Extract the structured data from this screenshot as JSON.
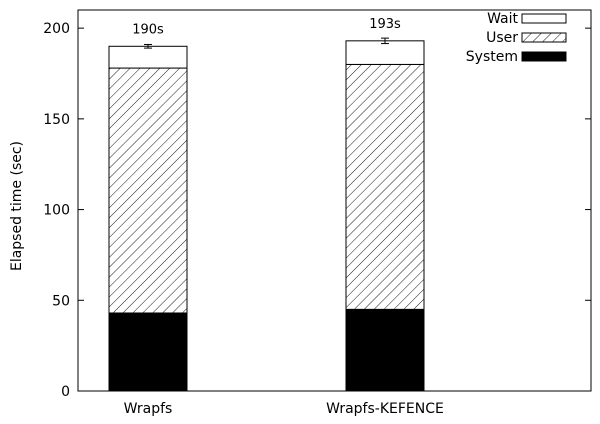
{
  "chart_data": {
    "type": "bar",
    "stacked": true,
    "title": "",
    "xlabel": "",
    "ylabel": "Elapsed time (sec)",
    "ylim": [
      0,
      210
    ],
    "yticks": [
      0,
      50,
      100,
      150,
      200
    ],
    "categories": [
      "Wrapfs",
      "Wrapfs-KEFENCE"
    ],
    "series": [
      {
        "name": "System",
        "fill": "solid",
        "color": "#000000",
        "values": [
          43,
          45
        ]
      },
      {
        "name": "User",
        "fill": "diagonal-hatch",
        "color": "#000000",
        "values": [
          135,
          135
        ]
      },
      {
        "name": "Wait",
        "fill": "empty",
        "color": "#ffffff",
        "values": [
          12,
          13
        ]
      }
    ],
    "totals": [
      190,
      193
    ],
    "total_labels": [
      "190s",
      "193s"
    ],
    "error_bars": [
      1,
      1.5
    ],
    "legend_position": "top-right",
    "legend_order": [
      "Wait",
      "User",
      "System"
    ],
    "grid": false
  }
}
